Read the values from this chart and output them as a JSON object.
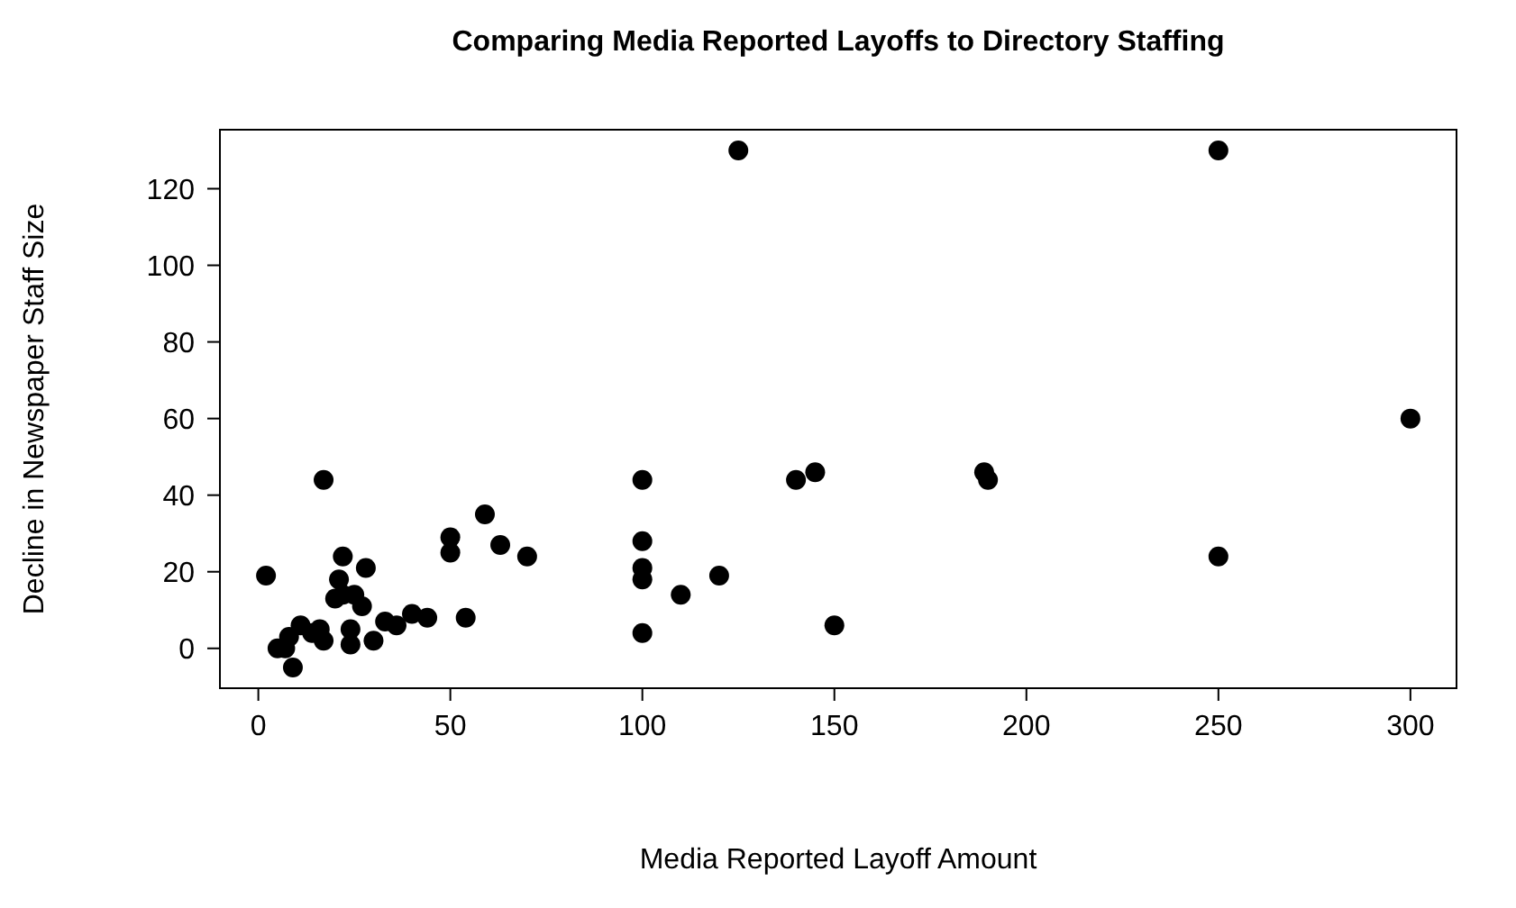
{
  "chart_data": {
    "type": "scatter",
    "title": "Comparing Media Reported Layoffs to Directory Staffing",
    "xlabel": "Media Reported Layoff Amount",
    "ylabel": "Decline in Newspaper Staff Size",
    "x": [
      125,
      250,
      300,
      100,
      140,
      145,
      189,
      190,
      100,
      100,
      100,
      110,
      120,
      100,
      150,
      250,
      17,
      2,
      22,
      28,
      21,
      20,
      25,
      22,
      27,
      11,
      8,
      5,
      7,
      9,
      16,
      17,
      14,
      24,
      24,
      30,
      33,
      36,
      40,
      44,
      54,
      50,
      50,
      59,
      63,
      70
    ],
    "values": [
      130,
      130,
      60,
      44,
      44,
      46,
      46,
      44,
      28,
      21,
      18,
      14,
      19,
      4,
      6,
      24,
      44,
      19,
      24,
      21,
      18,
      13,
      14,
      14,
      11,
      6,
      3,
      0,
      0,
      -5,
      5,
      2,
      4,
      5,
      1,
      2,
      7,
      6,
      9,
      8,
      8,
      29,
      25,
      35,
      27,
      24
    ],
    "color": "#000000",
    "marker": "circle",
    "xlim": [
      -10,
      312
    ],
    "ylim": [
      -10.4,
      135.4
    ],
    "xticks": [
      0,
      50,
      100,
      150,
      200,
      250,
      300
    ],
    "yticks": [
      0,
      20,
      40,
      60,
      80,
      100,
      120
    ]
  }
}
